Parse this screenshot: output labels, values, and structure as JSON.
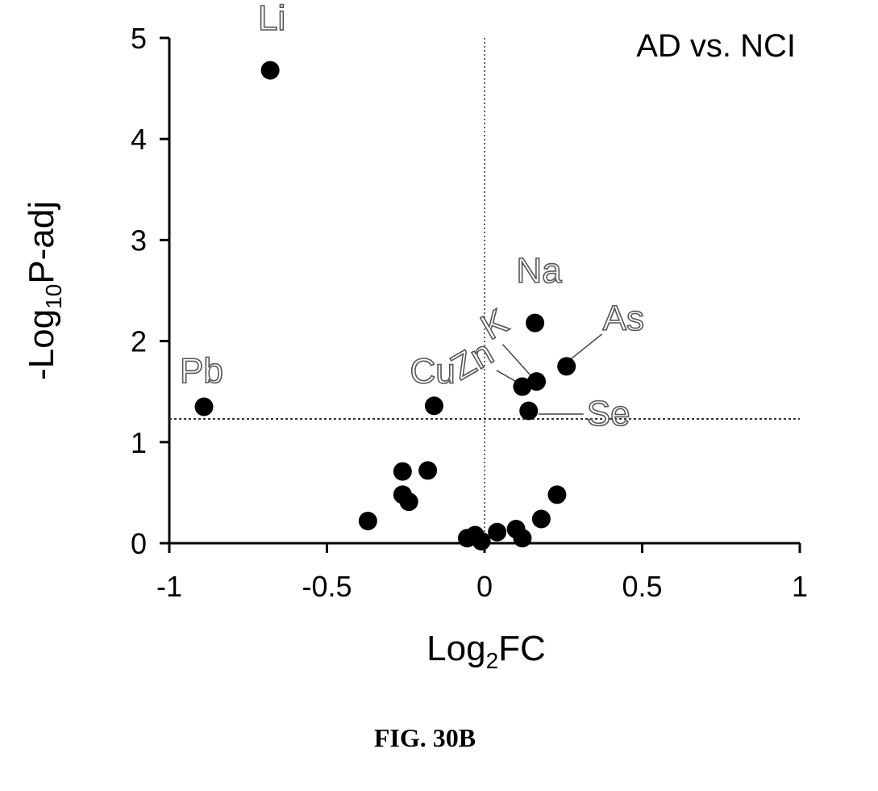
{
  "chart_data": {
    "type": "scatter",
    "title": "AD vs. NCI",
    "xlabel": {
      "base": "Log",
      "sub": "2",
      "rest": "FC"
    },
    "ylabel": {
      "base": "-Log",
      "sub": "10",
      "rest": "P-adj"
    },
    "xlim": [
      -1,
      1
    ],
    "ylim": [
      0,
      5
    ],
    "x_ticks": [
      -1,
      -0.5,
      0,
      0.5,
      1
    ],
    "x_tick_labels": [
      "-1",
      "-0.5",
      "0",
      "0.5",
      "1"
    ],
    "y_ticks": [
      0,
      1,
      2,
      3,
      4,
      5
    ],
    "y_tick_labels": [
      "0",
      "1",
      "2",
      "3",
      "4",
      "5"
    ],
    "threshold_y": 1.23,
    "vertical_ref_x": 0,
    "points": [
      {
        "x": -0.68,
        "y": 4.68,
        "label": "Li"
      },
      {
        "x": -0.89,
        "y": 1.35,
        "label": "Pb"
      },
      {
        "x": -0.16,
        "y": 1.36,
        "label": "Cu"
      },
      {
        "x": 0.16,
        "y": 2.18,
        "label": "Na"
      },
      {
        "x": 0.26,
        "y": 1.75,
        "label": "As"
      },
      {
        "x": 0.165,
        "y": 1.6,
        "label": "K"
      },
      {
        "x": 0.12,
        "y": 1.55,
        "label": "Zn"
      },
      {
        "x": 0.14,
        "y": 1.31,
        "label": "Se"
      },
      {
        "x": -0.26,
        "y": 0.71,
        "label": ""
      },
      {
        "x": -0.18,
        "y": 0.72,
        "label": ""
      },
      {
        "x": -0.26,
        "y": 0.48,
        "label": ""
      },
      {
        "x": -0.24,
        "y": 0.41,
        "label": ""
      },
      {
        "x": -0.37,
        "y": 0.22,
        "label": ""
      },
      {
        "x": 0.23,
        "y": 0.48,
        "label": ""
      },
      {
        "x": 0.18,
        "y": 0.24,
        "label": ""
      },
      {
        "x": -0.055,
        "y": 0.05,
        "label": ""
      },
      {
        "x": -0.03,
        "y": 0.08,
        "label": ""
      },
      {
        "x": -0.01,
        "y": 0.02,
        "label": ""
      },
      {
        "x": 0.04,
        "y": 0.11,
        "label": ""
      },
      {
        "x": 0.1,
        "y": 0.14,
        "label": ""
      },
      {
        "x": 0.12,
        "y": 0.05,
        "label": ""
      }
    ]
  },
  "caption": "FIG. 30B"
}
